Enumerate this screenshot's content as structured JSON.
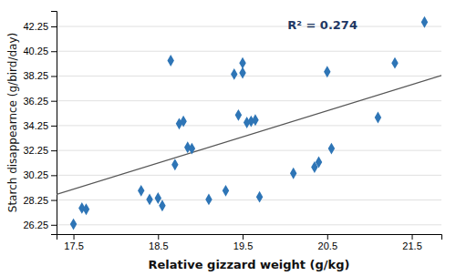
{
  "chart_data": {
    "type": "scatter",
    "x": [
      17.5,
      17.6,
      17.65,
      18.3,
      18.4,
      18.5,
      18.55,
      18.65,
      18.7,
      18.75,
      18.8,
      18.85,
      18.9,
      19.1,
      19.3,
      19.4,
      19.45,
      19.5,
      19.5,
      19.55,
      19.6,
      19.65,
      19.7,
      20.1,
      20.35,
      20.4,
      20.5,
      20.55,
      21.1,
      21.3,
      21.65
    ],
    "values": [
      26.3,
      27.6,
      27.5,
      29.0,
      28.3,
      28.4,
      27.8,
      39.5,
      31.1,
      34.4,
      34.6,
      32.5,
      32.4,
      28.3,
      29.0,
      38.4,
      35.1,
      38.5,
      39.3,
      34.5,
      34.6,
      34.7,
      28.5,
      30.4,
      30.9,
      31.3,
      38.6,
      32.4,
      34.9,
      39.3,
      42.6
    ],
    "color": "#2E75B6",
    "marker": "diamond",
    "trendline": {
      "x": [
        17.3,
        21.85
      ],
      "values": [
        28.7,
        38.3
      ],
      "color": "#555555"
    },
    "annotations": [
      {
        "text": "R² = 0.274",
        "color": "#1F3864"
      }
    ],
    "xlabel": "Relative gizzard weight (g/kg)",
    "ylabel": "Starch disappearnce (g/bird/day)",
    "xlim": [
      17.3,
      21.85
    ],
    "ylim": [
      25.5,
      43.5
    ],
    "xticks": [
      17.5,
      18.5,
      19.5,
      20.5,
      21.5
    ],
    "yticks": [
      26.25,
      28.25,
      30.25,
      32.25,
      34.25,
      36.25,
      38.25,
      40.25,
      42.25
    ],
    "grid": true
  }
}
